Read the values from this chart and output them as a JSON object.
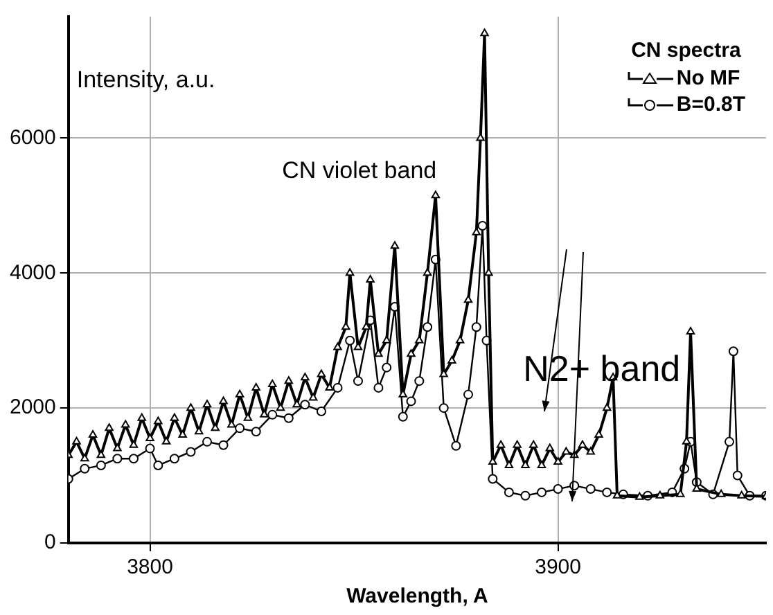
{
  "chart_data": {
    "type": "line",
    "xlabel": "Wavelength, A",
    "ylabel": "Intensity, a.u.",
    "legend_title": "CN spectra",
    "legend": "top right",
    "grid": true,
    "xlim": [
      3780,
      3951
    ],
    "ylim": [
      0,
      7800
    ],
    "xticks": [
      3800,
      3900
    ],
    "yticks": [
      0,
      2000,
      4000,
      6000
    ],
    "annotations": [
      "CN violet band",
      "N2+ band"
    ],
    "series": [
      {
        "name": "No MF",
        "color": "#000000",
        "marker": "triangle",
        "x": [
          3780,
          3782,
          3784,
          3786,
          3788,
          3790,
          3792,
          3794,
          3796,
          3798,
          3800,
          3802,
          3804,
          3806,
          3808,
          3810,
          3812,
          3814,
          3816,
          3818,
          3820,
          3822,
          3824,
          3826,
          3828,
          3830,
          3832,
          3834,
          3836,
          3838,
          3840,
          3842,
          3844,
          3846,
          3848,
          3849,
          3851,
          3853,
          3854,
          3856,
          3858,
          3860,
          3862,
          3864,
          3866,
          3868,
          3870,
          3872,
          3874,
          3876,
          3878,
          3880,
          3881,
          3882,
          3883,
          3884,
          3886,
          3888,
          3890,
          3892,
          3894,
          3896,
          3898,
          3900,
          3902,
          3904,
          3906,
          3908,
          3910,
          3912,
          3913.5,
          3914.5,
          3920,
          3925,
          3930,
          3931.5,
          3932.5,
          3934,
          3940,
          3945,
          3951
        ],
        "values": [
          1300,
          1500,
          1250,
          1600,
          1300,
          1700,
          1400,
          1750,
          1450,
          1850,
          1550,
          1800,
          1500,
          1850,
          1600,
          2000,
          1650,
          2050,
          1700,
          2100,
          1750,
          2200,
          1850,
          2300,
          1900,
          2350,
          2000,
          2400,
          2050,
          2450,
          2150,
          2500,
          2300,
          2900,
          3200,
          4000,
          2900,
          3200,
          3900,
          2800,
          3000,
          4400,
          2200,
          2800,
          3000,
          4000,
          5150,
          2500,
          2700,
          3000,
          3600,
          4600,
          6000,
          7550,
          4000,
          1200,
          1450,
          1150,
          1450,
          1150,
          1450,
          1150,
          1400,
          1200,
          1350,
          1300,
          1450,
          1350,
          1600,
          2000,
          2450,
          700,
          680,
          700,
          720,
          1500,
          3130,
          800,
          720,
          700,
          690
        ]
      },
      {
        "name": "B=0.8T",
        "color": "#000000",
        "marker": "circle",
        "x": [
          3780,
          3784,
          3788,
          3792,
          3796,
          3800,
          3802,
          3806,
          3810,
          3814,
          3818,
          3822,
          3826,
          3830,
          3834,
          3838,
          3842,
          3846,
          3849,
          3851,
          3854,
          3856,
          3858,
          3860,
          3862,
          3864,
          3866,
          3868,
          3870,
          3872,
          3875,
          3878,
          3880,
          3881.5,
          3882.5,
          3884,
          3888,
          3892,
          3896,
          3900,
          3904,
          3908,
          3912,
          3916,
          3922,
          3928,
          3931,
          3932.5,
          3934,
          3938,
          3942,
          3943,
          3944,
          3947,
          3951
        ],
        "values": [
          950,
          1100,
          1150,
          1250,
          1250,
          1400,
          1150,
          1250,
          1350,
          1500,
          1450,
          1700,
          1650,
          1900,
          1850,
          2050,
          1950,
          2300,
          3000,
          2400,
          3300,
          2300,
          2600,
          3500,
          1870,
          2100,
          2400,
          3200,
          4200,
          2000,
          1440,
          2200,
          3200,
          4700,
          3000,
          950,
          750,
          700,
          750,
          800,
          850,
          800,
          750,
          720,
          700,
          750,
          1100,
          1500,
          900,
          720,
          1500,
          2840,
          1000,
          700,
          700
        ]
      }
    ]
  }
}
